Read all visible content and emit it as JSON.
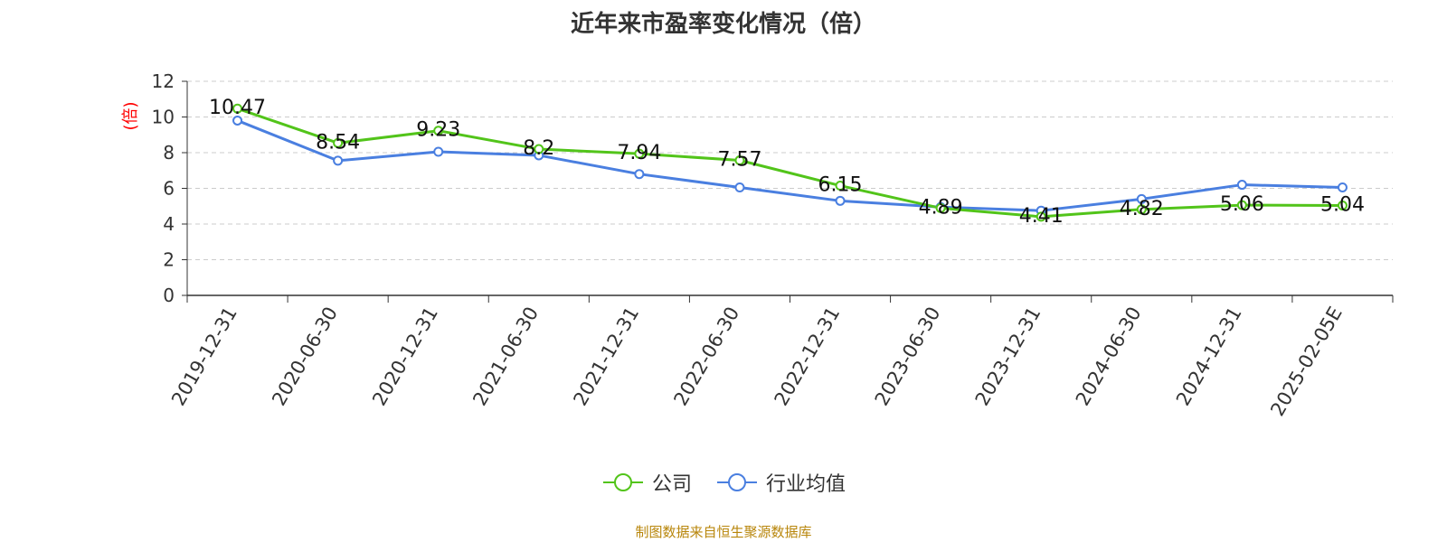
{
  "title": "近年来市盈率变化情况（倍）",
  "source_note": "制图数据来自恒生聚源数据库",
  "colors": {
    "company": "#52c41a",
    "industry": "#4a7fe0",
    "ylabel": "#ff0000",
    "source": "#b8860b"
  },
  "chart_data": {
    "type": "line",
    "title": "近年来市盈率变化情况（倍）",
    "ylabel": "(倍)",
    "xlabel": "",
    "categories": [
      "2019-12-31",
      "2020-06-30",
      "2020-12-31",
      "2021-06-30",
      "2021-12-31",
      "2022-06-30",
      "2022-12-31",
      "2023-06-30",
      "2023-12-31",
      "2024-06-30",
      "2024-12-31",
      "2025-02-05E"
    ],
    "ylim": [
      0,
      12
    ],
    "yticks": [
      0,
      2,
      4,
      6,
      8,
      10,
      12
    ],
    "grid": true,
    "legend_position": "bottom",
    "series": [
      {
        "name": "公司",
        "values": [
          10.47,
          8.54,
          9.23,
          8.2,
          7.94,
          7.57,
          6.15,
          4.89,
          4.41,
          4.82,
          5.06,
          5.04
        ],
        "labels": [
          "10.47",
          "8.54",
          "9.23",
          "8.2",
          "7.94",
          "7.57",
          "6.15",
          "4.89",
          "4.41",
          "4.82",
          "5.06",
          "5.04"
        ]
      },
      {
        "name": "行业均值",
        "values": [
          9.8,
          7.55,
          8.05,
          7.85,
          6.8,
          6.05,
          5.3,
          4.95,
          4.75,
          5.4,
          6.2,
          6.05
        ]
      }
    ]
  }
}
